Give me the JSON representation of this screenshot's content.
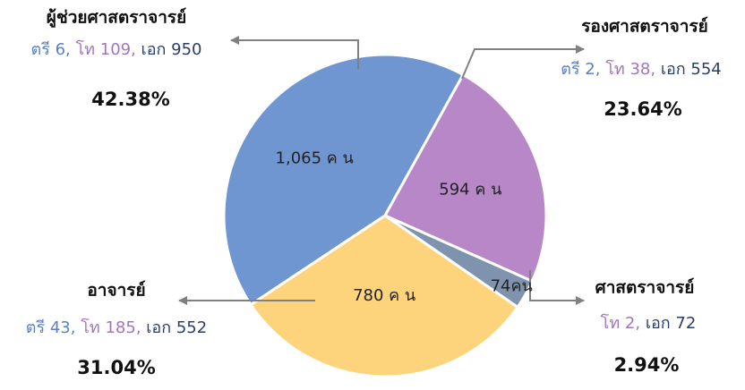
{
  "chart_data": {
    "type": "pie",
    "categories": [
      "ผู้ช่วยศาสตราจารย์",
      "รองศาสตราจารย์",
      "ศาสตราจารย์",
      "อาจารย์"
    ],
    "values": [
      1065,
      594,
      74,
      780
    ],
    "value_labels": [
      "1,065 ค น",
      "594 ค น",
      "74คน",
      "780 ค น"
    ],
    "colors": [
      "#7096d1",
      "#b887c8",
      "#8093ae",
      "#fdd47c"
    ],
    "percent_labels": [
      "42.38%",
      "23.64%",
      "2.94%",
      "31.04%"
    ],
    "details": [
      [
        {
          "text": "ตรี 6,",
          "color": "#5b80c8"
        },
        {
          "text": " โท 109,",
          "color": "#a374c2"
        },
        {
          "text": " เอก 950",
          "color": "#2b3d6e"
        }
      ],
      [
        {
          "text": "ตรี 2,",
          "color": "#5b80c8"
        },
        {
          "text": " โท 38,",
          "color": "#a374c2"
        },
        {
          "text": " เอก 554",
          "color": "#2b3d6e"
        }
      ],
      [
        {
          "text": "โท 2,",
          "color": "#a374c2"
        },
        {
          "text": " เอก 72",
          "color": "#2b3d6e"
        }
      ],
      [
        {
          "text": "ตรี 43,",
          "color": "#5b80c8"
        },
        {
          "text": " โท 185,",
          "color": "#a374c2"
        },
        {
          "text": " เอก 552",
          "color": "#2b3d6e"
        }
      ]
    ]
  }
}
